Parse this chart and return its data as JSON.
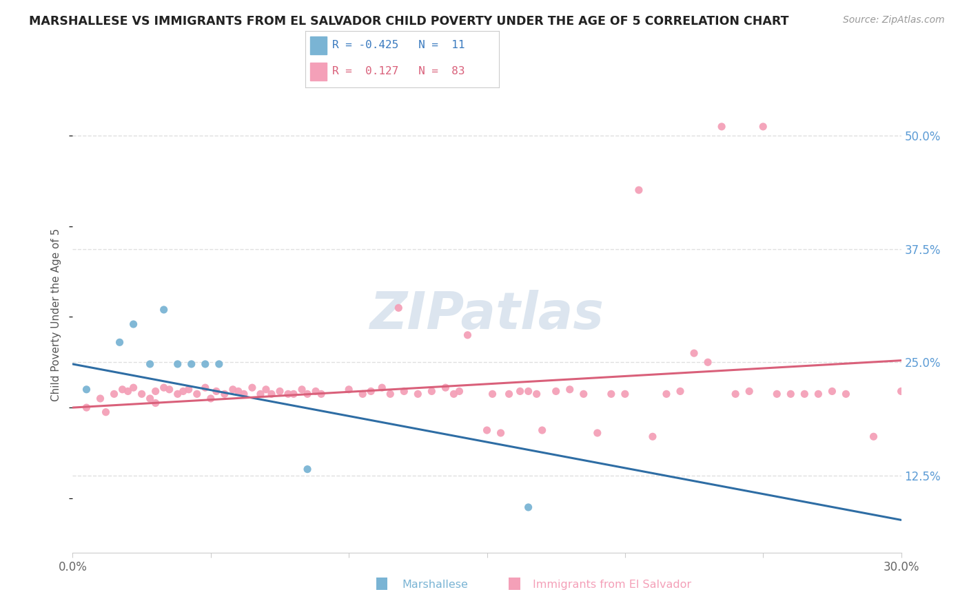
{
  "title": "MARSHALLESE VS IMMIGRANTS FROM EL SALVADOR CHILD POVERTY UNDER THE AGE OF 5 CORRELATION CHART",
  "source": "Source: ZipAtlas.com",
  "ylabel": "Child Poverty Under the Age of 5",
  "xlim": [
    0.0,
    0.3
  ],
  "ylim": [
    0.04,
    0.565
  ],
  "xtick_positions": [
    0.0,
    0.05,
    0.1,
    0.15,
    0.2,
    0.25,
    0.3
  ],
  "xticklabels": [
    "0.0%",
    "",
    "",
    "",
    "",
    "",
    "30.0%"
  ],
  "ytick_right": [
    0.125,
    0.25,
    0.375,
    0.5
  ],
  "ytick_right_labels": [
    "12.5%",
    "25.0%",
    "37.5%",
    "50.0%"
  ],
  "marshallese_color": "#7ab4d4",
  "salvador_color": "#f4a0b8",
  "trend_blue": "#2E6DA4",
  "trend_pink": "#d9607a",
  "legend_R1": "-0.425",
  "legend_N1": "11",
  "legend_R2": "0.127",
  "legend_N2": "83",
  "watermark": "ZIPatlas",
  "bg_color": "#ffffff",
  "grid_color": "#e0e0e0",
  "blue_line_x": [
    0.0,
    0.3
  ],
  "blue_line_y": [
    0.248,
    0.076
  ],
  "pink_line_x": [
    0.0,
    0.3
  ],
  "pink_line_y": [
    0.2,
    0.252
  ]
}
